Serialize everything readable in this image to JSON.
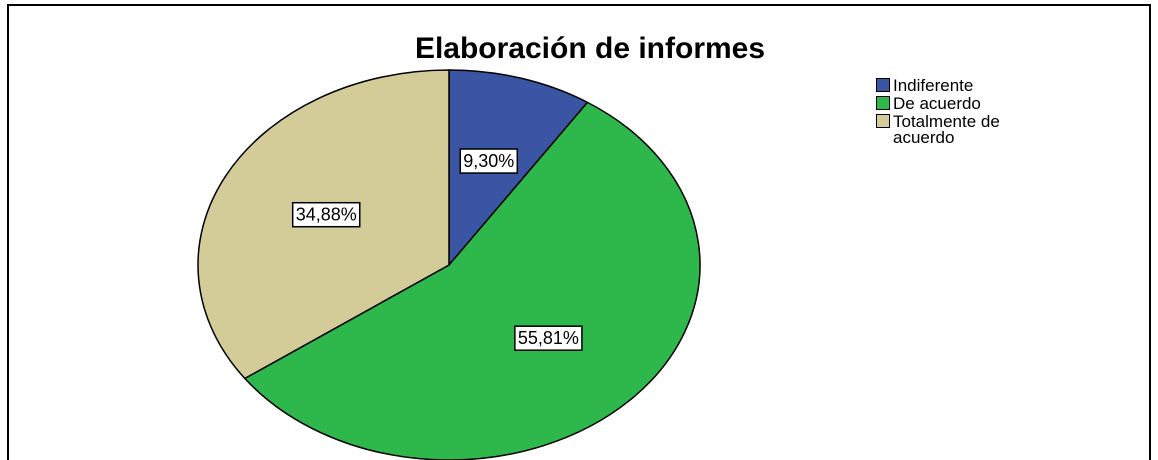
{
  "chart_data": {
    "type": "pie",
    "title": "Elaboración de informes",
    "categories": [
      "Indiferente",
      "De acuerdo",
      "Totalmente de acuerdo"
    ],
    "values": [
      9.3,
      55.81,
      34.88
    ],
    "value_labels": [
      "9,30%",
      "55,81%",
      "34,88%"
    ],
    "colors": [
      "#3a55a4",
      "#2eb84b",
      "#d4cc98"
    ],
    "legend": "upper right"
  }
}
